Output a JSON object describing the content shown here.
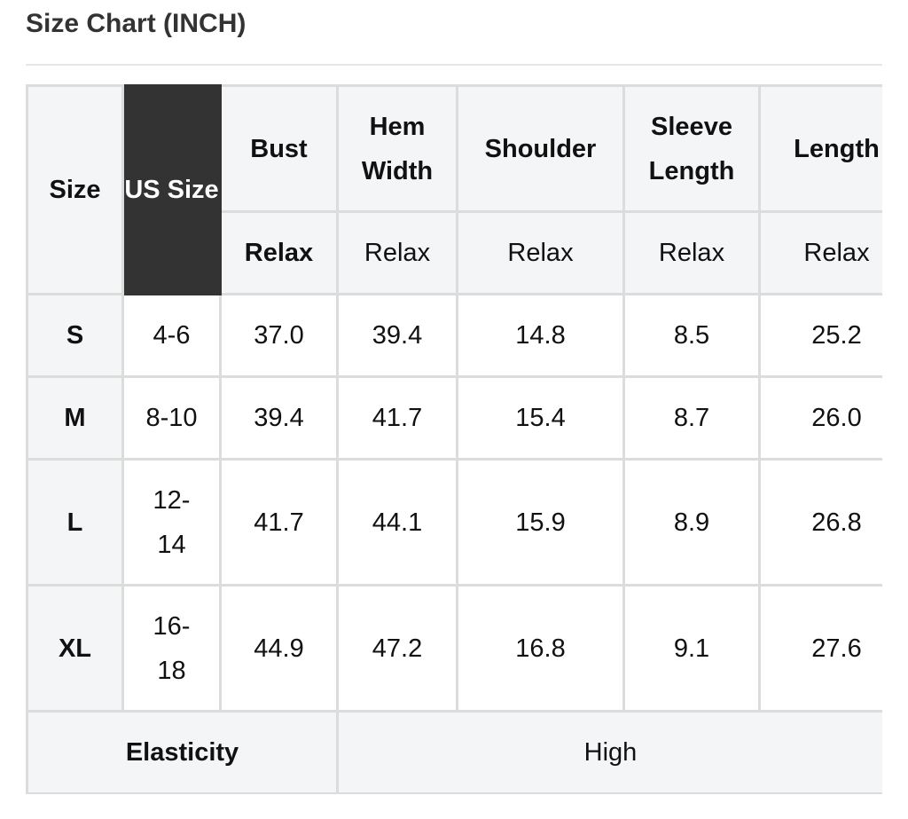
{
  "title": "Size Chart (INCH)",
  "table": {
    "headers": {
      "size": "Size",
      "us_size": "US Size",
      "columns": [
        "Bust",
        "Hem Width",
        "Shoulder",
        "Sleeve Length",
        "Length"
      ],
      "fit": [
        "Relax",
        "Relax",
        "Relax",
        "Relax",
        "Relax"
      ]
    },
    "rows": [
      {
        "size": "S",
        "us": "4-6",
        "values": [
          "37.0",
          "39.4",
          "14.8",
          "8.5",
          "25.2"
        ]
      },
      {
        "size": "M",
        "us": "8-10",
        "values": [
          "39.4",
          "41.7",
          "15.4",
          "8.7",
          "26.0"
        ]
      },
      {
        "size": "L",
        "us": "12-14",
        "values": [
          "41.7",
          "44.1",
          "15.9",
          "8.9",
          "26.8"
        ]
      },
      {
        "size": "XL",
        "us": "16-18",
        "values": [
          "44.9",
          "47.2",
          "16.8",
          "9.1",
          "27.6"
        ]
      }
    ],
    "elasticity": {
      "label": "Elasticity",
      "value": "High"
    }
  },
  "colors": {
    "header_bg": "#f4f5f7",
    "us_size_bg": "#333333",
    "border": "#dcdcdc"
  }
}
